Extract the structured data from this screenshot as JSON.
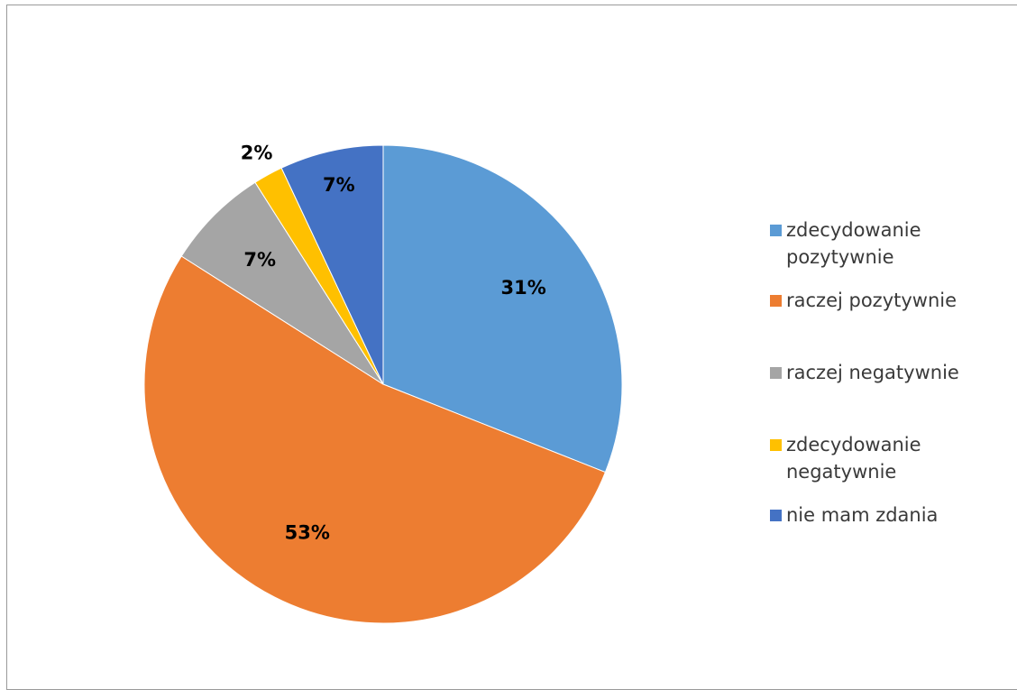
{
  "chart_data": {
    "type": "pie",
    "title": "",
    "categories": [
      "zdecydowanie pozytywnie",
      "raczej pozytywnie",
      "raczej negatywnie",
      "zdecydowanie negatywnie",
      "nie mam zdania"
    ],
    "values": [
      31,
      53,
      7,
      2,
      7
    ],
    "data_labels": [
      "31%",
      "53%",
      "7%",
      "2%",
      "7%"
    ],
    "colors": [
      "#5b9bd5",
      "#ed7d31",
      "#a5a5a5",
      "#ffc000",
      "#4472c4"
    ],
    "legend_position": "right",
    "start_angle": "12 o'clock",
    "direction": "clockwise"
  },
  "legend": {
    "items": [
      {
        "label": "zdecydowanie pozytywnie",
        "color": "#5b9bd5"
      },
      {
        "label": "raczej pozytywnie",
        "color": "#ed7d31"
      },
      {
        "label": "raczej negatywnie",
        "color": "#a5a5a5"
      },
      {
        "label": "zdecydowanie negatywnie",
        "color": "#ffc000"
      },
      {
        "label": "nie mam zdania",
        "color": "#4472c4"
      }
    ]
  }
}
